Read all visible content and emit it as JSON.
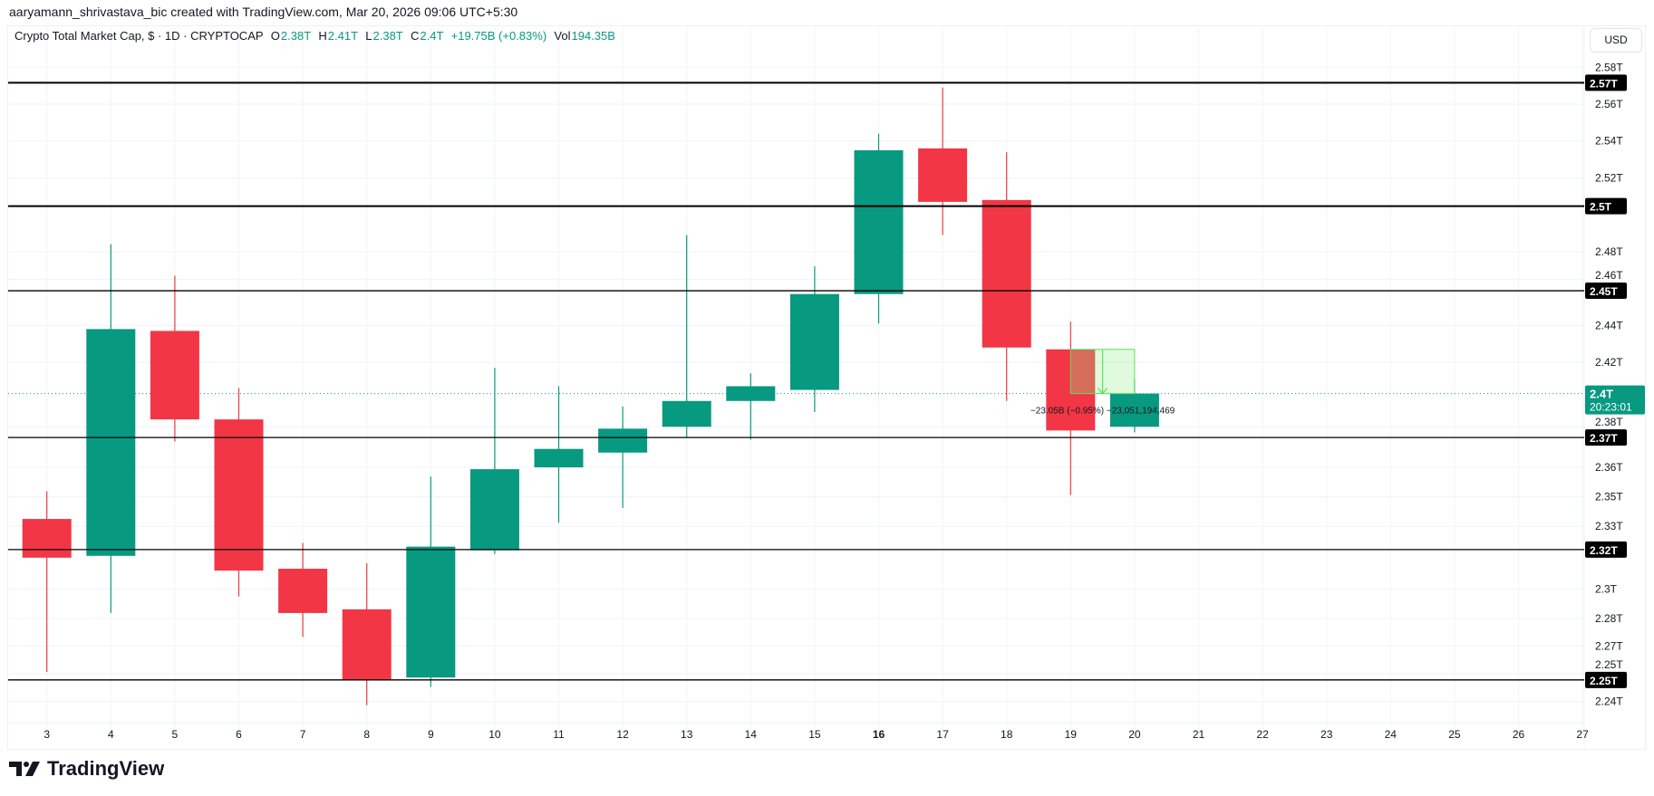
{
  "caption": "aaryamann_shrivastava_bic created with TradingView.com, Mar 20, 2026 09:06 UTC+5:30",
  "legend": {
    "symbol": "Crypto Total Market Cap, $ · 1D · CRYPTOCAP",
    "o_label": "O",
    "o": "2.38T",
    "h_label": "H",
    "h": "2.41T",
    "l_label": "L",
    "l": "2.38T",
    "c_label": "C",
    "c": "2.4T",
    "change": "+19.75B (+0.83%)",
    "vol_label": "Vol",
    "vol": "194.35B"
  },
  "currency_button": "USD",
  "logo_text": "TradingView",
  "colors": {
    "up": "#089981",
    "down": "#f23645",
    "level": "#000000",
    "measure": "#5ee05e"
  },
  "chart_data": {
    "type": "candlestick",
    "x_ticks": [
      "3",
      "4",
      "5",
      "6",
      "7",
      "8",
      "9",
      "10",
      "11",
      "12",
      "13",
      "14",
      "15",
      "16",
      "17",
      "18",
      "19",
      "20",
      "21",
      "22",
      "23",
      "24",
      "25",
      "26",
      "27"
    ],
    "candles": [
      {
        "day": 3,
        "o": 2.335,
        "h": 2.35,
        "l": 2.252,
        "c": 2.314
      },
      {
        "day": 4,
        "o": 2.315,
        "h": 2.484,
        "l": 2.284,
        "c": 2.438
      },
      {
        "day": 5,
        "o": 2.437,
        "h": 2.467,
        "l": 2.377,
        "c": 2.389
      },
      {
        "day": 6,
        "o": 2.389,
        "h": 2.406,
        "l": 2.293,
        "c": 2.307
      },
      {
        "day": 7,
        "o": 2.308,
        "h": 2.322,
        "l": 2.271,
        "c": 2.284
      },
      {
        "day": 8,
        "o": 2.286,
        "h": 2.311,
        "l": 2.234,
        "c": 2.248
      },
      {
        "day": 9,
        "o": 2.249,
        "h": 2.358,
        "l": 2.244,
        "c": 2.32
      },
      {
        "day": 10,
        "o": 2.318,
        "h": 2.417,
        "l": 2.316,
        "c": 2.362
      },
      {
        "day": 11,
        "o": 2.363,
        "h": 2.407,
        "l": 2.333,
        "c": 2.373
      },
      {
        "day": 12,
        "o": 2.371,
        "h": 2.396,
        "l": 2.341,
        "c": 2.384
      },
      {
        "day": 13,
        "o": 2.385,
        "h": 2.489,
        "l": 2.379,
        "c": 2.399
      },
      {
        "day": 14,
        "o": 2.399,
        "h": 2.414,
        "l": 2.378,
        "c": 2.407
      },
      {
        "day": 15,
        "o": 2.405,
        "h": 2.472,
        "l": 2.393,
        "c": 2.457
      },
      {
        "day": 16,
        "o": 2.457,
        "h": 2.544,
        "l": 2.441,
        "c": 2.535
      },
      {
        "day": 17,
        "o": 2.536,
        "h": 2.569,
        "l": 2.489,
        "c": 2.507
      },
      {
        "day": 18,
        "o": 2.508,
        "h": 2.534,
        "l": 2.399,
        "c": 2.428
      },
      {
        "day": 19,
        "o": 2.427,
        "h": 2.442,
        "l": 2.348,
        "c": 2.383
      },
      {
        "day": 20,
        "o": 2.385,
        "h": 2.411,
        "l": 2.382,
        "c": 2.403
      }
    ],
    "y_ticks": [
      {
        "label": "2.58T",
        "value": 2.58
      },
      {
        "label": "2.56T",
        "value": 2.56
      },
      {
        "label": "2.54T",
        "value": 2.54
      },
      {
        "label": "2.52T",
        "value": 2.52
      },
      {
        "label": "2.48T",
        "value": 2.48
      },
      {
        "label": "2.46T",
        "value": 2.465
      },
      {
        "label": "2.44T",
        "value": 2.44
      },
      {
        "label": "2.42T",
        "value": 2.42
      },
      {
        "label": "2.38T",
        "value": 2.385
      },
      {
        "label": "2.36T",
        "value": 2.363
      },
      {
        "label": "2.35T",
        "value": 2.347
      },
      {
        "label": "2.33T",
        "value": 2.331
      },
      {
        "label": "2.3T",
        "value": 2.297
      },
      {
        "label": "2.28T",
        "value": 2.281
      },
      {
        "label": "2.27T",
        "value": 2.266
      },
      {
        "label": "2.25T",
        "value": 2.251
      },
      {
        "label": "2.24T",
        "value": 2.236
      }
    ],
    "y_range": [
      2.226,
      2.588
    ],
    "levels": [
      {
        "label": "2.57T",
        "value": 2.5716,
        "weight": "bold"
      },
      {
        "label": "2.5T",
        "value": 2.5047,
        "weight": "bold"
      },
      {
        "label": "2.45T",
        "value": 2.4588,
        "weight": "normal"
      },
      {
        "label": "2.37T",
        "value": 2.3792,
        "weight": "normal"
      },
      {
        "label": "2.32T",
        "value": 2.3184,
        "weight": "normal"
      },
      {
        "label": "2.25T",
        "value": 2.2477,
        "weight": "normal"
      }
    ],
    "current_price": {
      "label": "2.4T",
      "countdown": "20:23:01",
      "value": 2.403
    },
    "measurement": {
      "from_day": 19,
      "to_day": 20,
      "from_value": 2.427,
      "to_value": 2.403,
      "text": "−23.05B (−0.95%) −23,051,194,469"
    },
    "grid": true
  }
}
